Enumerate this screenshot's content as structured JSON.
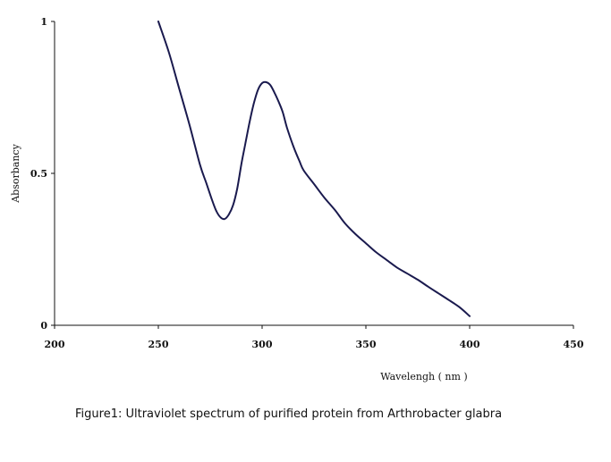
{
  "chart_data": {
    "type": "line",
    "title": "",
    "xlabel": "Wavelengh ( nm )",
    "ylabel": "Absorbancy",
    "xlim": [
      200,
      450
    ],
    "ylim": [
      0,
      1
    ],
    "xticks": [
      "200",
      "250",
      "300",
      "350",
      "400",
      "450"
    ],
    "xtick_values": [
      200,
      250,
      300,
      350,
      400,
      450
    ],
    "yticks": [
      "0",
      "0.5",
      "1"
    ],
    "ytick_values": [
      0,
      0.5,
      1
    ],
    "grid": false,
    "legend": "none",
    "line_color": "#1a1a4e",
    "series": [
      {
        "name": "Absorbancy",
        "x": [
          250,
          255,
          260,
          265,
          270,
          273,
          276,
          278,
          280,
          282,
          284,
          286,
          288,
          290,
          292,
          294,
          296,
          298,
          300,
          302,
          304,
          306,
          308,
          310,
          312,
          315,
          318,
          320,
          325,
          330,
          335,
          340,
          345,
          350,
          355,
          360,
          365,
          370,
          375,
          380,
          385,
          390,
          395,
          400
        ],
        "values": [
          1.0,
          0.9,
          0.78,
          0.66,
          0.53,
          0.47,
          0.41,
          0.375,
          0.355,
          0.35,
          0.365,
          0.395,
          0.45,
          0.53,
          0.6,
          0.67,
          0.73,
          0.775,
          0.797,
          0.8,
          0.79,
          0.765,
          0.735,
          0.7,
          0.65,
          0.59,
          0.54,
          0.51,
          0.465,
          0.42,
          0.38,
          0.335,
          0.3,
          0.27,
          0.24,
          0.215,
          0.19,
          0.17,
          0.15,
          0.127,
          0.105,
          0.083,
          0.06,
          0.03
        ]
      }
    ]
  },
  "caption": "Figure1: Ultraviolet spectrum of purified protein from Arthrobacter glabra"
}
